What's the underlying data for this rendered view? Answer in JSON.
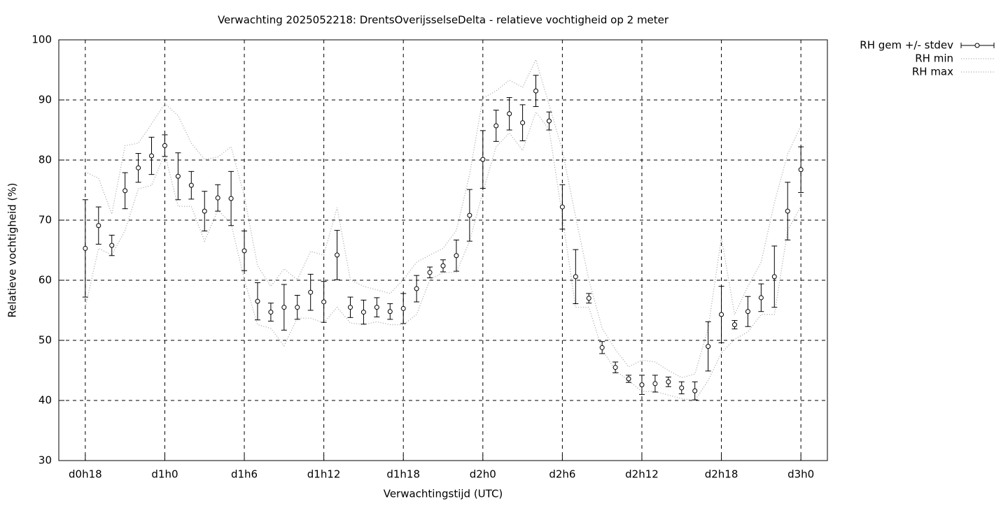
{
  "chart_data": {
    "type": "errorbar",
    "title": "Verwachting 2025052218: DrentsOverijsselseDelta - relatieve vochtigheid op 2 meter",
    "xlabel": "Verwachtingstijd (UTC)",
    "ylabel": "Relatieve vochtigheid (%)",
    "x": [
      18,
      19,
      20,
      21,
      22,
      23,
      24,
      25,
      26,
      27,
      28,
      29,
      30,
      31,
      32,
      33,
      34,
      35,
      36,
      37,
      38,
      39,
      40,
      41,
      42,
      43,
      44,
      45,
      46,
      47,
      48,
      49,
      50,
      51,
      52,
      53,
      54,
      55,
      56,
      57,
      58,
      59,
      60,
      61,
      62,
      63,
      64,
      65,
      66,
      67,
      68,
      69,
      70,
      71,
      72
    ],
    "series": [
      {
        "name": "RH gem +/- stdev",
        "color": "#000000",
        "values": [
          65.3,
          69.1,
          65.8,
          74.9,
          78.7,
          80.7,
          82.4,
          77.3,
          75.8,
          71.5,
          73.7,
          73.6,
          64.9,
          56.5,
          54.7,
          55.5,
          55.5,
          58.0,
          56.4,
          64.2,
          55.5,
          54.7,
          55.5,
          54.8,
          55.3,
          58.6,
          61.3,
          62.4,
          64.1,
          70.8,
          80.1,
          85.7,
          87.7,
          86.2,
          91.5,
          86.5,
          72.2,
          60.6,
          57.0,
          48.8,
          45.5,
          43.6,
          42.6,
          42.8,
          43.1,
          42.1,
          41.6,
          49.0,
          54.3,
          52.6,
          54.8,
          57.1,
          60.6,
          71.5,
          78.4
        ],
        "errors": [
          8.1,
          3.1,
          1.7,
          3.0,
          2.4,
          3.1,
          1.8,
          3.9,
          2.3,
          3.3,
          2.2,
          4.5,
          3.3,
          3.1,
          1.5,
          3.8,
          2.0,
          3.0,
          3.4,
          4.1,
          1.7,
          2.0,
          1.6,
          1.3,
          2.5,
          2.2,
          0.9,
          1.0,
          2.6,
          4.3,
          4.8,
          2.6,
          2.7,
          3.0,
          2.6,
          1.5,
          3.7,
          4.5,
          0.8,
          1.0,
          0.9,
          0.6,
          1.6,
          1.4,
          0.8,
          1.0,
          1.5,
          4.1,
          4.7,
          0.7,
          2.5,
          2.3,
          5.1,
          4.8,
          3.8
        ]
      },
      {
        "name": "RH min",
        "color": "#a0a0a0",
        "values": [
          55.5,
          65.3,
          64.2,
          68.3,
          75.2,
          75.8,
          81.0,
          72.3,
          72.3,
          66.5,
          71.7,
          69.4,
          60.1,
          52.6,
          52.0,
          49.1,
          53.7,
          53.7,
          52.9,
          55.5,
          52.9,
          52.6,
          53.1,
          52.6,
          52.6,
          54.3,
          60.1,
          61.3,
          61.3,
          66.5,
          74.7,
          82.2,
          84.5,
          81.6,
          88.0,
          85.1,
          70.6,
          55.5,
          55.5,
          48.5,
          45.0,
          43.3,
          41.5,
          41.5,
          40.9,
          40.3,
          40.0,
          43.3,
          47.9,
          50.2,
          51.4,
          54.3,
          54.3,
          68.3,
          72.3
        ]
      },
      {
        "name": "RH max",
        "color": "#a0a0a0",
        "values": [
          78.0,
          77.0,
          71.0,
          82.4,
          82.8,
          86.0,
          89.4,
          87.4,
          82.8,
          80.1,
          80.5,
          82.2,
          74.0,
          62.4,
          59.0,
          61.9,
          60.1,
          64.8,
          64.2,
          72.1,
          60.1,
          59.0,
          58.4,
          57.8,
          60.1,
          63.0,
          64.2,
          65.3,
          68.3,
          77.6,
          90.3,
          91.5,
          93.3,
          92.1,
          96.7,
          89.2,
          81.6,
          70.6,
          60.1,
          52.0,
          48.5,
          45.6,
          46.7,
          46.4,
          45.0,
          43.8,
          44.4,
          52.0,
          67.1,
          54.3,
          59.0,
          63.0,
          72.9,
          81.0,
          85.7
        ]
      }
    ],
    "xlim": [
      16,
      74
    ],
    "xticks": [
      {
        "value": 18,
        "label": "d0h18"
      },
      {
        "value": 24,
        "label": "d1h0"
      },
      {
        "value": 30,
        "label": "d1h6"
      },
      {
        "value": 36,
        "label": "d1h12"
      },
      {
        "value": 42,
        "label": "d1h18"
      },
      {
        "value": 48,
        "label": "d2h0"
      },
      {
        "value": 54,
        "label": "d2h6"
      },
      {
        "value": 60,
        "label": "d2h12"
      },
      {
        "value": 66,
        "label": "d2h18"
      },
      {
        "value": 72,
        "label": "d3h0"
      }
    ],
    "ylim": [
      30,
      100
    ],
    "yticks": [
      30,
      40,
      50,
      60,
      70,
      80,
      90,
      100
    ],
    "grid": true,
    "legend": "outside-right"
  }
}
